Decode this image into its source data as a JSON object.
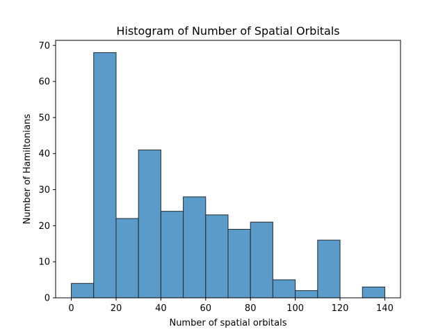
{
  "chart_data": {
    "type": "bar",
    "title": "Histogram of Number of Spatial Orbitals",
    "xlabel": "Number of spatial orbitals",
    "ylabel": "Number of Hamiltonians",
    "xlim": [
      -7,
      147
    ],
    "ylim": [
      0,
      71.4
    ],
    "xticks": [
      0,
      20,
      40,
      60,
      80,
      100,
      120,
      140
    ],
    "yticks": [
      0,
      10,
      20,
      30,
      40,
      50,
      60,
      70
    ],
    "bins": [
      {
        "x0": 0,
        "x1": 10,
        "count": 4
      },
      {
        "x0": 10,
        "x1": 20,
        "count": 68
      },
      {
        "x0": 20,
        "x1": 30,
        "count": 22
      },
      {
        "x0": 30,
        "x1": 40,
        "count": 41
      },
      {
        "x0": 40,
        "x1": 50,
        "count": 24
      },
      {
        "x0": 50,
        "x1": 60,
        "count": 28
      },
      {
        "x0": 60,
        "x1": 70,
        "count": 23
      },
      {
        "x0": 70,
        "x1": 80,
        "count": 19
      },
      {
        "x0": 80,
        "x1": 90,
        "count": 21
      },
      {
        "x0": 90,
        "x1": 100,
        "count": 5
      },
      {
        "x0": 100,
        "x1": 110,
        "count": 2
      },
      {
        "x0": 110,
        "x1": 120,
        "count": 16
      },
      {
        "x0": 120,
        "x1": 130,
        "count": 0
      },
      {
        "x0": 130,
        "x1": 140,
        "count": 3
      }
    ],
    "bar_color": "#5b9bc9",
    "edge_color": "#1f2a33",
    "grid": false,
    "legend": "none"
  }
}
